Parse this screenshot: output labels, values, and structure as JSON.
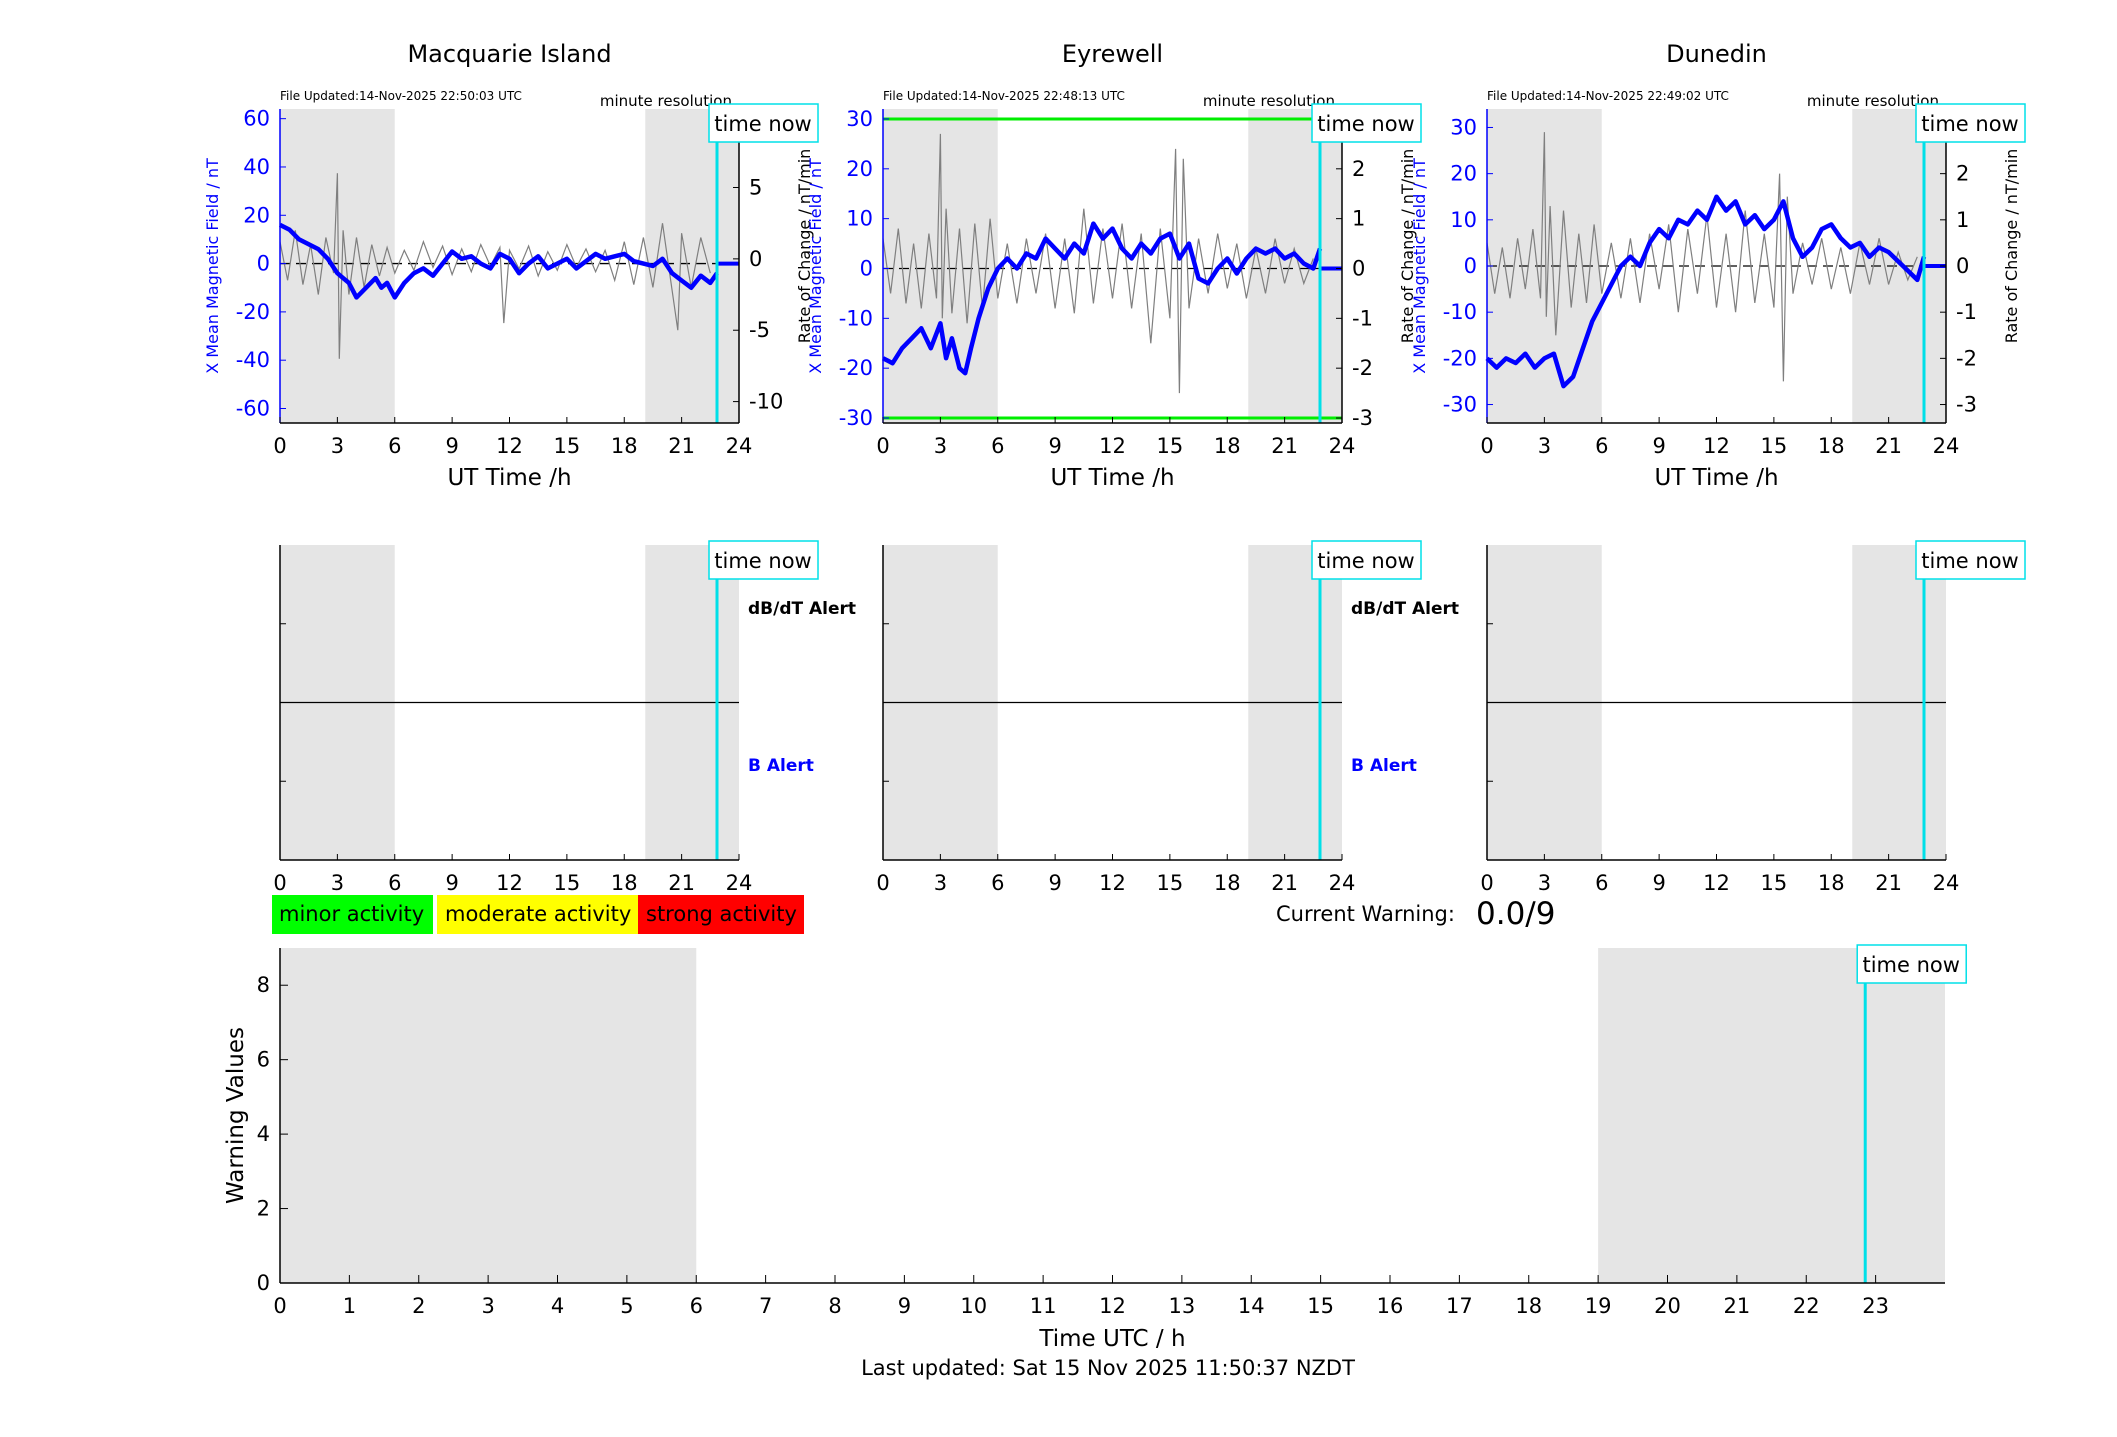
{
  "colors": {
    "field": "#0000ff",
    "rate": "#7f7f7f",
    "night_shade": "#e5e5e5",
    "time_now": "#00e0e8",
    "threshold": "#00ee00",
    "minor": "#00ff00",
    "moderate": "#ffff00",
    "strong": "#ff0000"
  },
  "time_now_label": "time now",
  "chart_data": [
    {
      "type": "line",
      "title": "Macquarie Island",
      "file_updated": "File Updated:14-Nov-2025 22:50:03 UTC",
      "resolution": "minute resolution",
      "xlabel": "UT Time /h",
      "ylabel": "X Mean Magnetic Field / nT",
      "ylabel_right": "Rate of Change / nT/min",
      "xlim": [
        0,
        24
      ],
      "xticks": [
        0,
        3,
        6,
        9,
        12,
        15,
        18,
        21,
        24
      ],
      "ylim": [
        -66,
        64
      ],
      "yticks": [
        -60,
        -40,
        -20,
        0,
        20,
        40,
        60
      ],
      "ylim_right": [
        -11.5,
        10.5
      ],
      "yticks_right": [
        -10,
        -5,
        0,
        5,
        10
      ],
      "night_shading": [
        [
          0,
          6
        ],
        [
          19.1,
          24
        ]
      ],
      "time_now": 22.85,
      "series": [
        {
          "axis": "left",
          "x": [
            0,
            0.5,
            1,
            1.5,
            2,
            2.5,
            3,
            3.3,
            3.6,
            4,
            4.5,
            5,
            5.3,
            5.6,
            6,
            6.5,
            7,
            7.5,
            8,
            8.5,
            9,
            9.5,
            10,
            10.5,
            11,
            11.5,
            12,
            12.5,
            13,
            13.5,
            14,
            14.5,
            15,
            15.5,
            16,
            16.5,
            17,
            17.5,
            18,
            18.5,
            19,
            19.5,
            20,
            20.5,
            21,
            21.5,
            22,
            22.5,
            22.85
          ],
          "y": [
            16,
            14,
            10,
            8,
            6,
            2,
            -4,
            -6,
            -8,
            -14,
            -10,
            -6,
            -10,
            -8,
            -14,
            -8,
            -4,
            -2,
            -5,
            0,
            5,
            2,
            3,
            0,
            -2,
            4,
            2,
            -4,
            0,
            3,
            -2,
            0,
            2,
            -2,
            1,
            4,
            2,
            3,
            4,
            1,
            0,
            -1,
            2,
            -4,
            -7,
            -10,
            -5,
            -8,
            -4
          ]
        },
        {
          "axis": "right",
          "x": [
            0,
            0.4,
            0.8,
            1.2,
            1.6,
            2,
            2.4,
            2.8,
            3,
            3.1,
            3.3,
            3.6,
            4,
            4.4,
            4.8,
            5.2,
            5.6,
            6,
            6.5,
            7,
            7.5,
            8,
            8.5,
            9,
            9.5,
            10,
            10.5,
            11,
            11.5,
            11.7,
            12,
            12.5,
            13,
            13.5,
            14,
            14.5,
            15,
            15.5,
            16,
            16.5,
            17,
            17.5,
            18,
            18.5,
            19,
            19.5,
            20,
            20.5,
            20.8,
            21,
            21.5,
            22,
            22.5
          ],
          "y": [
            1.2,
            -1.5,
            2,
            -1.8,
            1,
            -2.5,
            1.5,
            -1,
            6,
            -7,
            2,
            -2.5,
            1.5,
            -2,
            1,
            -1.2,
            0.8,
            -1,
            0.6,
            -0.8,
            1.2,
            -0.6,
            0.9,
            -1.1,
            0.7,
            -0.9,
            1,
            -0.5,
            0.8,
            -4.5,
            0.6,
            -0.7,
            0.9,
            -1.2,
            0.5,
            -0.8,
            1,
            -0.6,
            0.7,
            -0.9,
            0.6,
            -1.5,
            1.2,
            -1.8,
            1.5,
            -2,
            2.5,
            -2.2,
            -5,
            1.8,
            -2,
            1.5,
            -1
          ]
        }
      ]
    },
    {
      "type": "line",
      "title": "Eyrewell",
      "file_updated": "File Updated:14-Nov-2025 22:48:13 UTC",
      "resolution": "minute resolution",
      "xlabel": "UT Time /h",
      "ylabel": "X Mean Magnetic Field / nT",
      "ylabel_right": "Rate of Change / nT/min",
      "xlim": [
        0,
        24
      ],
      "xticks": [
        0,
        3,
        6,
        9,
        12,
        15,
        18,
        21,
        24
      ],
      "ylim": [
        -31,
        32
      ],
      "yticks": [
        -30,
        -20,
        -10,
        0,
        10,
        20,
        30
      ],
      "ylim_right": [
        -3.1,
        3.2
      ],
      "yticks_right": [
        -3,
        -2,
        -1,
        0,
        1,
        2,
        3
      ],
      "thresholds": [
        30,
        -30
      ],
      "night_shading": [
        [
          0,
          6
        ],
        [
          19.1,
          24
        ]
      ],
      "time_now": 22.85,
      "series": [
        {
          "axis": "left",
          "x": [
            0,
            0.5,
            1,
            1.5,
            2,
            2.5,
            3,
            3.3,
            3.6,
            4,
            4.3,
            4.6,
            5,
            5.5,
            6,
            6.5,
            7,
            7.5,
            8,
            8.5,
            9,
            9.5,
            10,
            10.5,
            11,
            11.5,
            12,
            12.5,
            13,
            13.5,
            14,
            14.5,
            15,
            15.5,
            16,
            16.5,
            17,
            17.5,
            18,
            18.5,
            19,
            19.5,
            20,
            20.5,
            21,
            21.5,
            22,
            22.5,
            22.85
          ],
          "y": [
            -18,
            -19,
            -16,
            -14,
            -12,
            -16,
            -11,
            -18,
            -14,
            -20,
            -21,
            -16,
            -10,
            -4,
            0,
            2,
            0,
            3,
            2,
            6,
            4,
            2,
            5,
            3,
            9,
            6,
            8,
            4,
            2,
            5,
            3,
            6,
            7,
            2,
            5,
            -2,
            -3,
            0,
            2,
            -1,
            2,
            4,
            3,
            4,
            2,
            3,
            1,
            0,
            4
          ]
        },
        {
          "axis": "right",
          "x": [
            0,
            0.4,
            0.8,
            1.2,
            1.6,
            2,
            2.4,
            2.8,
            3,
            3.1,
            3.3,
            3.6,
            4,
            4.4,
            4.8,
            5.2,
            5.6,
            6,
            6.5,
            7,
            7.5,
            8,
            8.5,
            9,
            9.5,
            10,
            10.5,
            11,
            11.5,
            12,
            12.5,
            13,
            13.5,
            14,
            14.5,
            15,
            15.3,
            15.5,
            15.7,
            16,
            16.5,
            17,
            17.5,
            18,
            18.5,
            19,
            19.5,
            20,
            20.5,
            21,
            21.5,
            22,
            22.5
          ],
          "y": [
            0.6,
            -0.5,
            0.8,
            -0.7,
            0.5,
            -0.8,
            0.7,
            -0.6,
            2.7,
            -1,
            1.2,
            -0.9,
            0.8,
            -1.1,
            0.9,
            -0.8,
            1,
            -0.6,
            0.5,
            -0.7,
            0.6,
            -0.5,
            0.7,
            -0.8,
            0.6,
            -0.9,
            1.2,
            -0.7,
            0.8,
            -0.6,
            0.9,
            -0.8,
            0.7,
            -1.5,
            0.8,
            -1,
            2.4,
            -2.5,
            2.2,
            -0.8,
            0.6,
            -0.5,
            0.7,
            -0.4,
            0.5,
            -0.6,
            0.4,
            -0.5,
            0.6,
            -0.3,
            0.4,
            -0.3,
            0.2
          ]
        }
      ]
    },
    {
      "type": "line",
      "title": "Dunedin",
      "file_updated": "File Updated:14-Nov-2025 22:49:02 UTC",
      "resolution": "minute resolution",
      "xlabel": "UT Time /h",
      "ylabel": "X Mean Magnetic Field / nT",
      "ylabel_right": "Rate of Change / nT/min",
      "xlim": [
        0,
        24
      ],
      "xticks": [
        0,
        3,
        6,
        9,
        12,
        15,
        18,
        21,
        24
      ],
      "ylim": [
        -34,
        34
      ],
      "yticks": [
        -30,
        -20,
        -10,
        0,
        10,
        20,
        30
      ],
      "ylim_right": [
        -3.4,
        3.4
      ],
      "yticks_right": [
        -3,
        -2,
        -1,
        0,
        1,
        2,
        3
      ],
      "night_shading": [
        [
          0,
          6
        ],
        [
          19.1,
          24
        ]
      ],
      "time_now": 22.85,
      "series": [
        {
          "axis": "left",
          "x": [
            0,
            0.5,
            1,
            1.5,
            2,
            2.5,
            3,
            3.5,
            4,
            4.5,
            5,
            5.5,
            6,
            6.5,
            7,
            7.5,
            8,
            8.5,
            9,
            9.5,
            10,
            10.5,
            11,
            11.5,
            12,
            12.5,
            13,
            13.5,
            14,
            14.5,
            15,
            15.5,
            16,
            16.5,
            17,
            17.5,
            18,
            18.5,
            19,
            19.5,
            20,
            20.5,
            21,
            21.5,
            22,
            22.5,
            22.85
          ],
          "y": [
            -20,
            -22,
            -20,
            -21,
            -19,
            -22,
            -20,
            -19,
            -26,
            -24,
            -18,
            -12,
            -8,
            -4,
            0,
            2,
            0,
            5,
            8,
            6,
            10,
            9,
            12,
            10,
            15,
            12,
            14,
            9,
            11,
            8,
            10,
            14,
            6,
            2,
            4,
            8,
            9,
            6,
            4,
            5,
            2,
            4,
            3,
            1,
            -1,
            -3,
            2
          ]
        },
        {
          "axis": "right",
          "x": [
            0,
            0.4,
            0.8,
            1.2,
            1.6,
            2,
            2.4,
            2.8,
            3,
            3.1,
            3.3,
            3.6,
            4,
            4.4,
            4.8,
            5.2,
            5.6,
            6,
            6.5,
            7,
            7.5,
            8,
            8.5,
            9,
            9.5,
            10,
            10.5,
            11,
            11.5,
            12,
            12.5,
            13,
            13.5,
            14,
            14.5,
            15,
            15.3,
            15.5,
            15.7,
            16,
            16.5,
            17,
            17.5,
            18,
            18.5,
            19,
            19.5,
            20,
            20.5,
            21,
            21.5,
            22,
            22.5
          ],
          "y": [
            0.5,
            -0.6,
            0.4,
            -0.7,
            0.6,
            -0.5,
            0.8,
            -0.7,
            2.9,
            -1.1,
            1.3,
            -1.5,
            1.2,
            -0.9,
            0.7,
            -0.8,
            0.9,
            -0.6,
            0.5,
            -0.7,
            0.6,
            -0.8,
            0.7,
            -0.5,
            0.9,
            -1,
            0.8,
            -0.6,
            1.1,
            -0.9,
            0.7,
            -1,
            1.2,
            -0.8,
            0.7,
            -0.9,
            2,
            -2.5,
            1.5,
            -0.6,
            0.5,
            -0.4,
            0.6,
            -0.5,
            0.4,
            -0.6,
            0.5,
            -0.4,
            0.6,
            -0.4,
            0.3,
            -0.3,
            0.2
          ]
        }
      ]
    },
    {
      "type": "line",
      "title": "",
      "alert_labels": [
        "dB/dT Alert",
        "B Alert"
      ],
      "xlim": [
        0,
        24
      ],
      "xticks": [
        0,
        3,
        6,
        9,
        12,
        15,
        18,
        21,
        24
      ],
      "night_shading": [
        [
          0,
          6
        ],
        [
          19.1,
          24
        ]
      ],
      "time_now": 22.85
    },
    {
      "type": "line",
      "title": "",
      "alert_labels": [
        "dB/dT Alert",
        "B Alert"
      ],
      "xlim": [
        0,
        24
      ],
      "xticks": [
        0,
        3,
        6,
        9,
        12,
        15,
        18,
        21,
        24
      ],
      "night_shading": [
        [
          0,
          6
        ],
        [
          19.1,
          24
        ]
      ],
      "time_now": 22.85
    },
    {
      "type": "line",
      "title": "",
      "xlim": [
        0,
        24
      ],
      "xticks": [
        0,
        3,
        6,
        9,
        12,
        15,
        18,
        21,
        24
      ],
      "night_shading": [
        [
          0,
          6
        ],
        [
          19.1,
          24
        ]
      ],
      "time_now": 22.85
    },
    {
      "type": "bar",
      "title": "",
      "xlabel": "Time UTC / h",
      "ylabel": "Warning Values",
      "xlim": [
        0,
        24
      ],
      "xticks": [
        0,
        1,
        2,
        3,
        4,
        5,
        6,
        7,
        8,
        9,
        10,
        11,
        12,
        13,
        14,
        15,
        16,
        17,
        18,
        19,
        20,
        21,
        22,
        23
      ],
      "ylim": [
        0,
        9
      ],
      "yticks": [
        0,
        2,
        4,
        6,
        8
      ],
      "night_shading": [
        [
          0,
          6
        ],
        [
          19,
          24
        ]
      ],
      "time_now": 22.85,
      "values": []
    }
  ],
  "legend": {
    "minor": "minor activity",
    "moderate": "moderate activity",
    "strong": "strong activity"
  },
  "current_warning_label": "Current Warning:",
  "current_warning_value": "0.0/9",
  "footer": "Last updated: Sat 15 Nov 2025 11:50:37 NZDT"
}
